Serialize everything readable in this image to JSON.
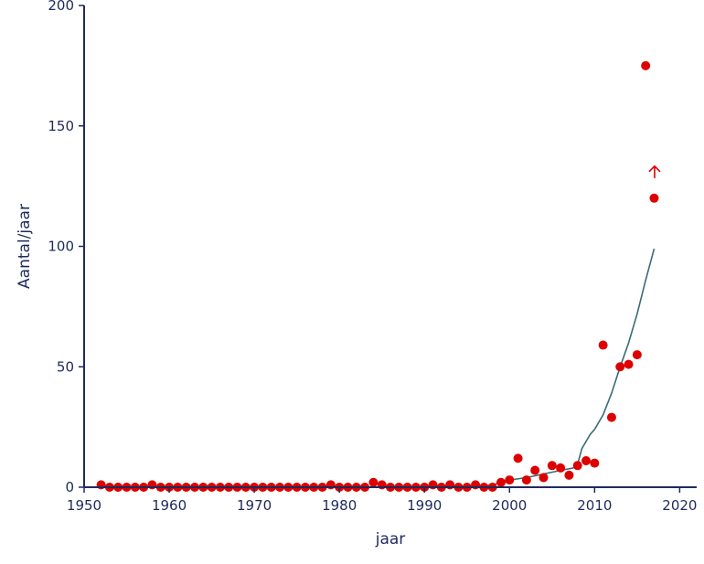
{
  "chart_data": {
    "type": "scatter",
    "xlabel": "jaar",
    "ylabel": "Aantal/jaar",
    "xlim": [
      1950,
      2022
    ],
    "ylim": [
      0,
      200
    ],
    "x_ticks": [
      1950,
      1960,
      1970,
      1980,
      1990,
      2000,
      2010,
      2020
    ],
    "y_ticks": [
      0,
      50,
      100,
      150,
      200
    ],
    "grid": false,
    "colors": {
      "points": "#dd0000",
      "trend": "#3a6a7a",
      "axis": "#1f2a5c",
      "arrow": "#dd0000"
    },
    "series": [
      {
        "kind": "points",
        "points": [
          [
            1952,
            1
          ],
          [
            1953,
            0
          ],
          [
            1954,
            0
          ],
          [
            1955,
            0
          ],
          [
            1956,
            0
          ],
          [
            1957,
            0
          ],
          [
            1958,
            1
          ],
          [
            1959,
            0
          ],
          [
            1960,
            0
          ],
          [
            1961,
            0
          ],
          [
            1962,
            0
          ],
          [
            1963,
            0
          ],
          [
            1964,
            0
          ],
          [
            1965,
            0
          ],
          [
            1966,
            0
          ],
          [
            1967,
            0
          ],
          [
            1968,
            0
          ],
          [
            1969,
            0
          ],
          [
            1970,
            0
          ],
          [
            1971,
            0
          ],
          [
            1972,
            0
          ],
          [
            1973,
            0
          ],
          [
            1974,
            0
          ],
          [
            1975,
            0
          ],
          [
            1976,
            0
          ],
          [
            1977,
            0
          ],
          [
            1978,
            0
          ],
          [
            1979,
            1
          ],
          [
            1980,
            0
          ],
          [
            1981,
            0
          ],
          [
            1982,
            0
          ],
          [
            1983,
            0
          ],
          [
            1984,
            2
          ],
          [
            1985,
            1
          ],
          [
            1986,
            0
          ],
          [
            1987,
            0
          ],
          [
            1988,
            0
          ],
          [
            1989,
            0
          ],
          [
            1990,
            0
          ],
          [
            1991,
            1
          ],
          [
            1992,
            0
          ],
          [
            1993,
            1
          ],
          [
            1994,
            0
          ],
          [
            1995,
            0
          ],
          [
            1996,
            1
          ],
          [
            1997,
            0
          ],
          [
            1998,
            0
          ],
          [
            1999,
            2
          ],
          [
            2000,
            3
          ],
          [
            2001,
            12
          ],
          [
            2002,
            3
          ],
          [
            2003,
            7
          ],
          [
            2004,
            4
          ],
          [
            2005,
            9
          ],
          [
            2006,
            8
          ],
          [
            2007,
            5
          ],
          [
            2008,
            9
          ],
          [
            2009,
            11
          ],
          [
            2010,
            10
          ],
          [
            2011,
            59
          ],
          [
            2012,
            29
          ],
          [
            2013,
            50
          ],
          [
            2014,
            51
          ],
          [
            2015,
            55
          ],
          [
            2016,
            175
          ],
          [
            2017,
            120
          ]
        ]
      },
      {
        "kind": "trend",
        "points": [
          [
            1996,
            0
          ],
          [
            1998,
            1
          ],
          [
            2000,
            3
          ],
          [
            2002,
            4
          ],
          [
            2004,
            5.5
          ],
          [
            2006,
            7
          ],
          [
            2007.5,
            8
          ],
          [
            2008,
            9.5
          ],
          [
            2008.5,
            16
          ],
          [
            2009,
            19
          ],
          [
            2009.5,
            22
          ],
          [
            2010,
            24
          ],
          [
            2011,
            30
          ],
          [
            2012,
            39
          ],
          [
            2013,
            50
          ],
          [
            2014,
            60
          ],
          [
            2015,
            72
          ],
          [
            2016,
            86
          ],
          [
            2017,
            99
          ]
        ]
      }
    ],
    "annotations": [
      {
        "type": "up-arrow",
        "x": 2017,
        "y": 131
      }
    ]
  }
}
